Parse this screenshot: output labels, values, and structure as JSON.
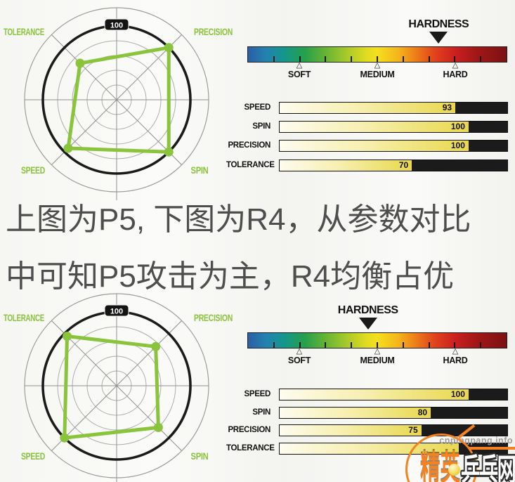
{
  "caption": {
    "line1": "上图为P5, 下图为R4，从参数对比",
    "line2": "中可知P5攻击为主，R4均衡占优"
  },
  "watermark": {
    "site_text": "cnpingpang.info",
    "logo_script": "精英",
    "logo_block": "乒乓网"
  },
  "colors": {
    "accent_green": "#8AC43C",
    "bar_yellow": "#E9D84D",
    "pointer_black": "#1A1A1A",
    "caption_gray": "#4E4E4E",
    "watermark_orange": "#F58220"
  },
  "chart_data": [
    {
      "product": "P5",
      "panel": "top",
      "radar": {
        "type": "radar",
        "categories": [
          "TOLERANCE",
          "PRECISION",
          "SPIN",
          "SPEED"
        ],
        "values": [
          70,
          100,
          100,
          93
        ],
        "ring_ticks": [
          20,
          40,
          60,
          80,
          100
        ],
        "outer_ring_label": "100",
        "axis_angles_deg": {
          "TOLERANCE": 135,
          "PRECISION": 45,
          "SPIN": -45,
          "SPEED": -135
        }
      },
      "hardness": {
        "type": "scale",
        "title": "HARDNESS",
        "pointer_pct": 73.6,
        "ticks_pct": [
          10,
          20,
          30,
          40,
          50,
          60,
          70,
          80,
          90
        ],
        "labels": [
          {
            "text": "SOFT",
            "pct": 20
          },
          {
            "text": "MEDIUM",
            "pct": 50
          },
          {
            "text": "HARD",
            "pct": 80
          }
        ]
      },
      "bars": {
        "type": "bar",
        "categories": [
          "SPEED",
          "SPIN",
          "PRECISION",
          "TOLERANCE"
        ],
        "values": [
          93,
          100,
          100,
          70
        ],
        "value_labels": [
          "93",
          "100",
          "100",
          "70"
        ],
        "xlim": [
          0,
          120.5
        ]
      }
    },
    {
      "product": "R4",
      "panel": "bottom",
      "radar": {
        "type": "radar",
        "categories": [
          "TOLERANCE",
          "PRECISION",
          "SPIN",
          "SPEED"
        ],
        "values": [
          95,
          75,
          80,
          100
        ],
        "ring_ticks": [
          20,
          40,
          60,
          80,
          100
        ],
        "outer_ring_label": "100",
        "axis_angles_deg": {
          "TOLERANCE": 135,
          "PRECISION": 45,
          "SPIN": -45,
          "SPEED": -135
        }
      },
      "hardness": {
        "type": "scale",
        "title": "HARDNESS",
        "pointer_pct": 46.4,
        "ticks_pct": [
          10,
          20,
          30,
          40,
          50,
          60,
          70,
          80,
          90
        ],
        "labels": [
          {
            "text": "SOFT",
            "pct": 20
          },
          {
            "text": "MEDIUM",
            "pct": 50
          },
          {
            "text": "HARD",
            "pct": 80
          }
        ]
      },
      "bars": {
        "type": "bar",
        "categories": [
          "SPEED",
          "SPIN",
          "PRECISION",
          "TOLERANCE"
        ],
        "values": [
          100,
          80,
          75,
          95
        ],
        "value_labels": [
          "100",
          "80",
          "75",
          ""
        ],
        "xlim": [
          0,
          120.5
        ]
      }
    }
  ]
}
